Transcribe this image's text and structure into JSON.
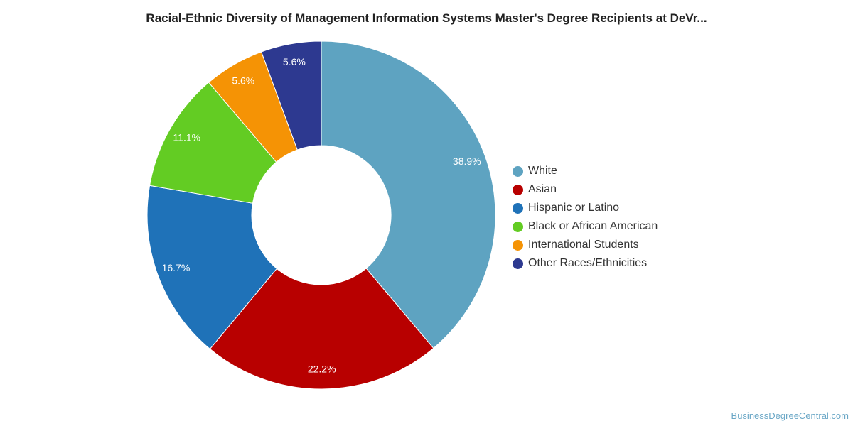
{
  "chart_data": {
    "type": "pie",
    "title": "Racial-Ethnic Diversity of Management Information Systems Master's Degree Recipients at DeVr...",
    "donut": true,
    "legend_position": "right",
    "slices": [
      {
        "label": "White",
        "value": 38.9,
        "display": "38.9%",
        "color": "#5ea3c1"
      },
      {
        "label": "Asian",
        "value": 22.2,
        "display": "22.2%",
        "color": "#b80000"
      },
      {
        "label": "Hispanic or Latino",
        "value": 16.7,
        "display": "16.7%",
        "color": "#1f72b8"
      },
      {
        "label": "Black or African American",
        "value": 11.1,
        "display": "11.1%",
        "color": "#63cc23"
      },
      {
        "label": "International Students",
        "value": 5.6,
        "display": "5.6%",
        "color": "#f59305"
      },
      {
        "label": "Other Races/Ethnicities",
        "value": 5.6,
        "display": "5.6%",
        "color": "#2d3990"
      }
    ]
  },
  "source": "BusinessDegreeCentral.com"
}
